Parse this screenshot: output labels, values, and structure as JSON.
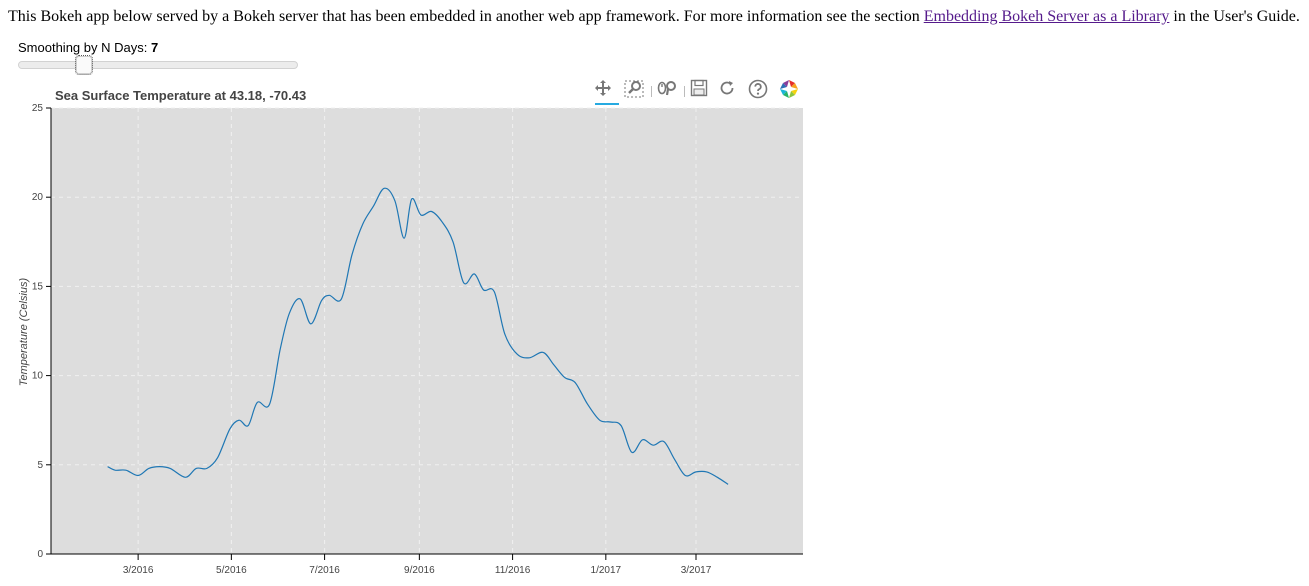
{
  "intro": {
    "text_before": "This Bokeh app below served by a Bokeh server that has been embedded in another web app framework. For more information see the section ",
    "link_text": "Embedding Bokeh Server as a Library",
    "text_after": " in the User's Guide."
  },
  "slider": {
    "label": "Smoothing by N Days: ",
    "value": "7",
    "start": 0,
    "end": 30,
    "value_num": 7
  },
  "plot": {
    "title": "Sea Surface Temperature at 43.18, -70.43",
    "ylabel": "Temperature (Celsius)"
  },
  "toolbar": {
    "tools": [
      {
        "name": "pan-icon",
        "active": true
      },
      {
        "name": "box-zoom-icon",
        "active": false
      },
      {
        "name": "wheel-zoom-icon",
        "active": false
      },
      {
        "name": "save-icon",
        "active": false
      },
      {
        "name": "reset-icon",
        "active": false
      },
      {
        "name": "help-icon",
        "active": false
      },
      {
        "name": "bokeh-logo-icon",
        "active": false
      }
    ]
  },
  "colors": {
    "line": "#1f77b4",
    "plot_bg": "#dddddd",
    "link": "#551a8b"
  },
  "chart_data": {
    "type": "line",
    "title": "Sea Surface Temperature at 43.18, -70.43",
    "xlabel": "",
    "ylabel": "Temperature (Celsius)",
    "x_axis_type": "datetime",
    "ylim": [
      0,
      25
    ],
    "xlim": [
      "2016-01-04",
      "2017-05-10"
    ],
    "yticks": [
      0,
      5,
      10,
      15,
      20,
      25
    ],
    "xticks": [
      "3/2016",
      "5/2016",
      "7/2016",
      "9/2016",
      "11/2016",
      "1/2017",
      "3/2017"
    ],
    "xtick_dates": [
      "2016-03-01",
      "2016-05-01",
      "2016-07-01",
      "2016-09-01",
      "2016-11-01",
      "2017-01-01",
      "2017-03-01"
    ],
    "grid": true,
    "series": [
      {
        "x": [
          "2016-02-10",
          "2016-02-15",
          "2016-02-22",
          "2016-03-01",
          "2016-03-08",
          "2016-03-15",
          "2016-03-22",
          "2016-04-01",
          "2016-04-08",
          "2016-04-15",
          "2016-04-22",
          "2016-04-30",
          "2016-05-06",
          "2016-05-12",
          "2016-05-18",
          "2016-05-26",
          "2016-06-02",
          "2016-06-08",
          "2016-06-15",
          "2016-06-22",
          "2016-06-29",
          "2016-07-04",
          "2016-07-12",
          "2016-07-19",
          "2016-07-26",
          "2016-08-02",
          "2016-08-09",
          "2016-08-16",
          "2016-08-22",
          "2016-08-27",
          "2016-09-02",
          "2016-09-09",
          "2016-09-16",
          "2016-09-23",
          "2016-09-30",
          "2016-10-07",
          "2016-10-13",
          "2016-10-20",
          "2016-10-27",
          "2016-11-04",
          "2016-11-12",
          "2016-11-21",
          "2016-11-28",
          "2016-12-05",
          "2016-12-12",
          "2016-12-20",
          "2016-12-28",
          "2017-01-04",
          "2017-01-11",
          "2017-01-18",
          "2017-01-25",
          "2017-02-01",
          "2017-02-08",
          "2017-02-15",
          "2017-02-22",
          "2017-03-01",
          "2017-03-08",
          "2017-03-15",
          "2017-03-22"
        ],
        "y": [
          4.9,
          4.7,
          4.7,
          4.4,
          4.8,
          4.9,
          4.8,
          4.3,
          4.8,
          4.8,
          5.4,
          7.0,
          7.5,
          7.2,
          8.5,
          8.4,
          11.5,
          13.5,
          14.3,
          12.9,
          14.2,
          14.5,
          14.3,
          16.8,
          18.5,
          19.5,
          20.5,
          19.8,
          17.7,
          19.9,
          19.0,
          19.2,
          18.6,
          17.5,
          15.2,
          15.7,
          14.8,
          14.7,
          12.3,
          11.2,
          11.0,
          11.3,
          10.6,
          9.9,
          9.6,
          8.4,
          7.5,
          7.4,
          7.2,
          5.7,
          6.4,
          6.1,
          6.3,
          5.3,
          4.4,
          4.6,
          4.6,
          4.3,
          3.9
        ]
      }
    ]
  }
}
